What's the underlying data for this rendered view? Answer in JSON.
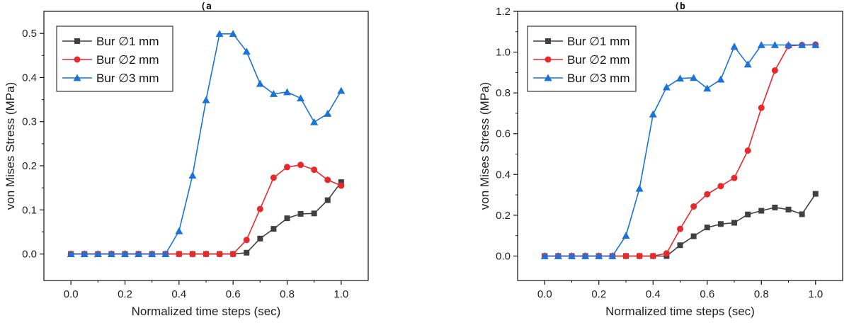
{
  "chart_data": [
    {
      "type": "line",
      "title": "(a",
      "xlabel": "Normalized time steps (sec)",
      "ylabel": "von Mises Stress (MPa)",
      "xlim": [
        -0.1,
        1.1
      ],
      "ylim": [
        -0.06,
        0.55
      ],
      "xticks": [
        0.0,
        0.2,
        0.4,
        0.6,
        0.8,
        1.0
      ],
      "xtick_labels": [
        "0.0",
        "0.2",
        "0.4",
        "0.6",
        "0.8",
        "1.0"
      ],
      "yticks": [
        0.0,
        0.1,
        0.2,
        0.3,
        0.4,
        0.5
      ],
      "ytick_labels": [
        "0.0",
        "0.1",
        "0.2",
        "0.3",
        "0.4",
        "0.5"
      ],
      "legend_position": "top-left",
      "x": [
        0.0,
        0.05,
        0.1,
        0.15,
        0.2,
        0.25,
        0.3,
        0.35,
        0.4,
        0.45,
        0.5,
        0.55,
        0.6,
        0.65,
        0.7,
        0.75,
        0.8,
        0.85,
        0.9,
        0.95,
        1.0
      ],
      "series": [
        {
          "name": "Bur ∅1 mm",
          "color": "#404040",
          "marker": "square",
          "values": [
            0,
            0,
            0,
            0,
            0,
            0,
            0,
            0,
            0,
            0,
            0,
            0,
            0,
            0.003,
            0.035,
            0.057,
            0.081,
            0.091,
            0.092,
            0.122,
            0.163
          ]
        },
        {
          "name": "Bur ∅2 mm",
          "color": "#e8292b",
          "marker": "circle",
          "values": [
            0,
            0,
            0,
            0,
            0,
            0,
            0,
            0,
            0,
            0,
            0,
            0,
            0,
            0.032,
            0.102,
            0.173,
            0.197,
            0.202,
            0.191,
            0.168,
            0.155
          ]
        },
        {
          "name": "Bur ∅3 mm",
          "color": "#1a73d9",
          "marker": "triangle",
          "values": [
            0,
            0,
            0,
            0,
            0,
            0,
            0,
            0,
            0.052,
            0.178,
            0.349,
            0.499,
            0.499,
            0.459,
            0.386,
            0.363,
            0.367,
            0.353,
            0.299,
            0.318,
            0.37
          ]
        }
      ]
    },
    {
      "type": "line",
      "title": "(b",
      "xlabel": "Normalized time steps (sec)",
      "ylabel": "von Mises Stress (MPa)",
      "xlim": [
        -0.1,
        1.1
      ],
      "ylim": [
        -0.12,
        1.2
      ],
      "xticks": [
        0.0,
        0.2,
        0.4,
        0.6,
        0.8,
        1.0
      ],
      "xtick_labels": [
        "0.0",
        "0.2",
        "0.4",
        "0.6",
        "0.8",
        "1.0"
      ],
      "yticks": [
        0.0,
        0.2,
        0.4,
        0.6,
        0.8,
        1.0,
        1.2
      ],
      "ytick_labels": [
        "0.0",
        "0.2",
        "0.4",
        "0.6",
        "0.8",
        "1.0",
        "1.2"
      ],
      "legend_position": "top-left",
      "x": [
        0.0,
        0.05,
        0.1,
        0.15,
        0.2,
        0.25,
        0.3,
        0.35,
        0.4,
        0.45,
        0.5,
        0.55,
        0.6,
        0.65,
        0.7,
        0.75,
        0.8,
        0.85,
        0.9,
        0.95,
        1.0
      ],
      "series": [
        {
          "name": "Bur ∅1 mm",
          "color": "#404040",
          "marker": "square",
          "values": [
            0,
            0,
            0,
            0,
            0,
            0,
            0,
            0,
            0,
            0,
            0.053,
            0.097,
            0.14,
            0.157,
            0.163,
            0.204,
            0.222,
            0.238,
            0.228,
            0.205,
            0.305
          ]
        },
        {
          "name": "Bur ∅2 mm",
          "color": "#e8292b",
          "marker": "circle",
          "values": [
            0,
            0,
            0,
            0,
            0,
            0,
            0,
            0,
            0,
            0.013,
            0.133,
            0.243,
            0.303,
            0.343,
            0.383,
            0.517,
            0.727,
            0.91,
            1.03,
            1.035,
            1.037
          ]
        },
        {
          "name": "Bur ∅3 mm",
          "color": "#1a73d9",
          "marker": "triangle",
          "values": [
            0,
            0,
            0,
            0,
            0,
            0,
            0.1,
            0.331,
            0.695,
            0.828,
            0.871,
            0.874,
            0.822,
            0.866,
            1.027,
            0.94,
            1.035,
            1.035,
            1.035,
            1.035,
            1.035
          ]
        }
      ]
    }
  ]
}
